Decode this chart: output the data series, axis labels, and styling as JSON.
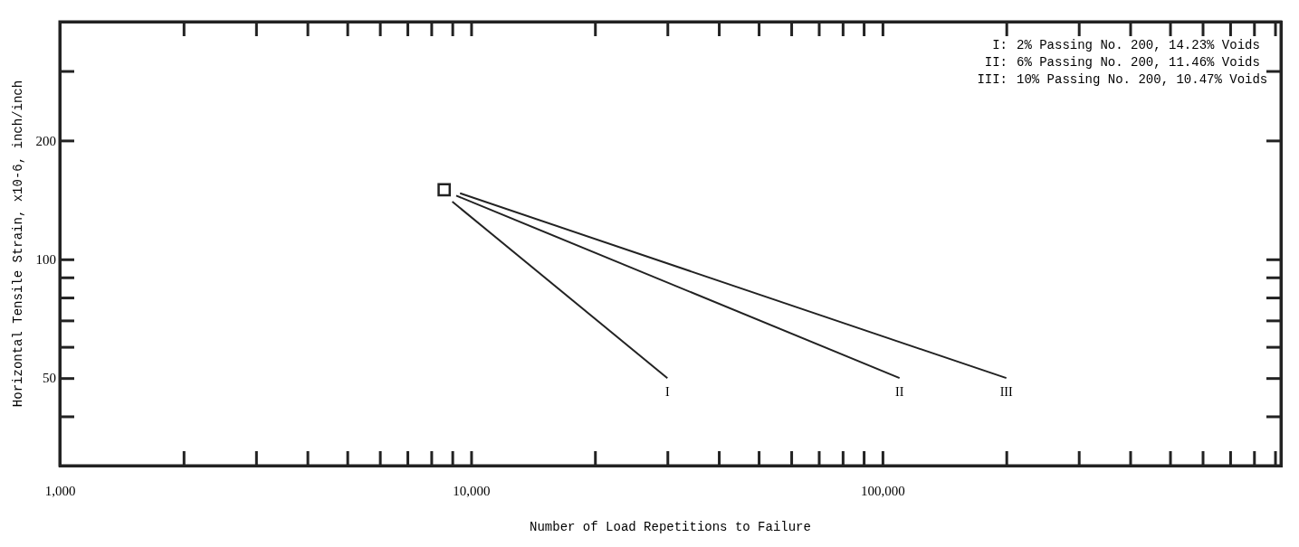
{
  "chart_data": {
    "type": "line",
    "xlabel": "Number of Load Repetitions to Failure",
    "ylabel": "Horizontal Tensile Strain, x10-6, inch/inch",
    "log": "xy",
    "xlim": [
      1000,
      930000
    ],
    "ylim": [
      30,
      400
    ],
    "xticks": [
      {
        "value": 1000,
        "label": "1,000"
      },
      {
        "value": 2000,
        "label": null
      },
      {
        "value": 3000,
        "label": null
      },
      {
        "value": 4000,
        "label": null
      },
      {
        "value": 5000,
        "label": null
      },
      {
        "value": 6000,
        "label": null
      },
      {
        "value": 7000,
        "label": null
      },
      {
        "value": 8000,
        "label": null
      },
      {
        "value": 9000,
        "label": null
      },
      {
        "value": 10000,
        "label": "10,000"
      },
      {
        "value": 20000,
        "label": null
      },
      {
        "value": 30000,
        "label": null
      },
      {
        "value": 40000,
        "label": null
      },
      {
        "value": 50000,
        "label": null
      },
      {
        "value": 60000,
        "label": null
      },
      {
        "value": 70000,
        "label": null
      },
      {
        "value": 80000,
        "label": null
      },
      {
        "value": 90000,
        "label": null
      },
      {
        "value": 100000,
        "label": "100,000"
      },
      {
        "value": 200000,
        "label": null
      },
      {
        "value": 300000,
        "label": null
      },
      {
        "value": 400000,
        "label": null
      },
      {
        "value": 500000,
        "label": null
      },
      {
        "value": 600000,
        "label": null
      },
      {
        "value": 700000,
        "label": null
      },
      {
        "value": 800000,
        "label": null
      },
      {
        "value": 900000,
        "label": null
      }
    ],
    "yticks": [
      {
        "value": 40,
        "label": null
      },
      50,
      {
        "value": 60,
        "label": null
      },
      {
        "value": 70,
        "label": null
      },
      {
        "value": 80,
        "label": null
      },
      {
        "value": 90,
        "label": null
      },
      100,
      200,
      {
        "value": 300,
        "label": null
      }
    ],
    "grid": false,
    "line_style": "solid",
    "marker": "none",
    "series": [
      {
        "type": "scatter",
        "marker": "square",
        "color": "#222222",
        "x": [
          8600
        ],
        "values": [
          150
        ]
      },
      {
        "color": "#222222",
        "x": [
          9000,
          30000
        ],
        "values": [
          140,
          50
        ]
      },
      {
        "color": "#222222",
        "x": [
          9200,
          110000
        ],
        "values": [
          145,
          50
        ]
      },
      {
        "color": "#222222",
        "x": [
          9400,
          200000
        ],
        "values": [
          147,
          50
        ]
      }
    ],
    "annotations": [
      {
        "text": "I",
        "x": 30000,
        "y": 50
      },
      {
        "text": "II",
        "x": 110000,
        "y": 50
      },
      {
        "text": "III",
        "x": 200000,
        "y": 50
      },
      "I:  2% Passing No. 200, 14.23% Voids",
      "II:  6% Passing No. 200, 11.46% Voids",
      "III:  10% Passing No. 200, 10.47% Voids"
    ]
  }
}
